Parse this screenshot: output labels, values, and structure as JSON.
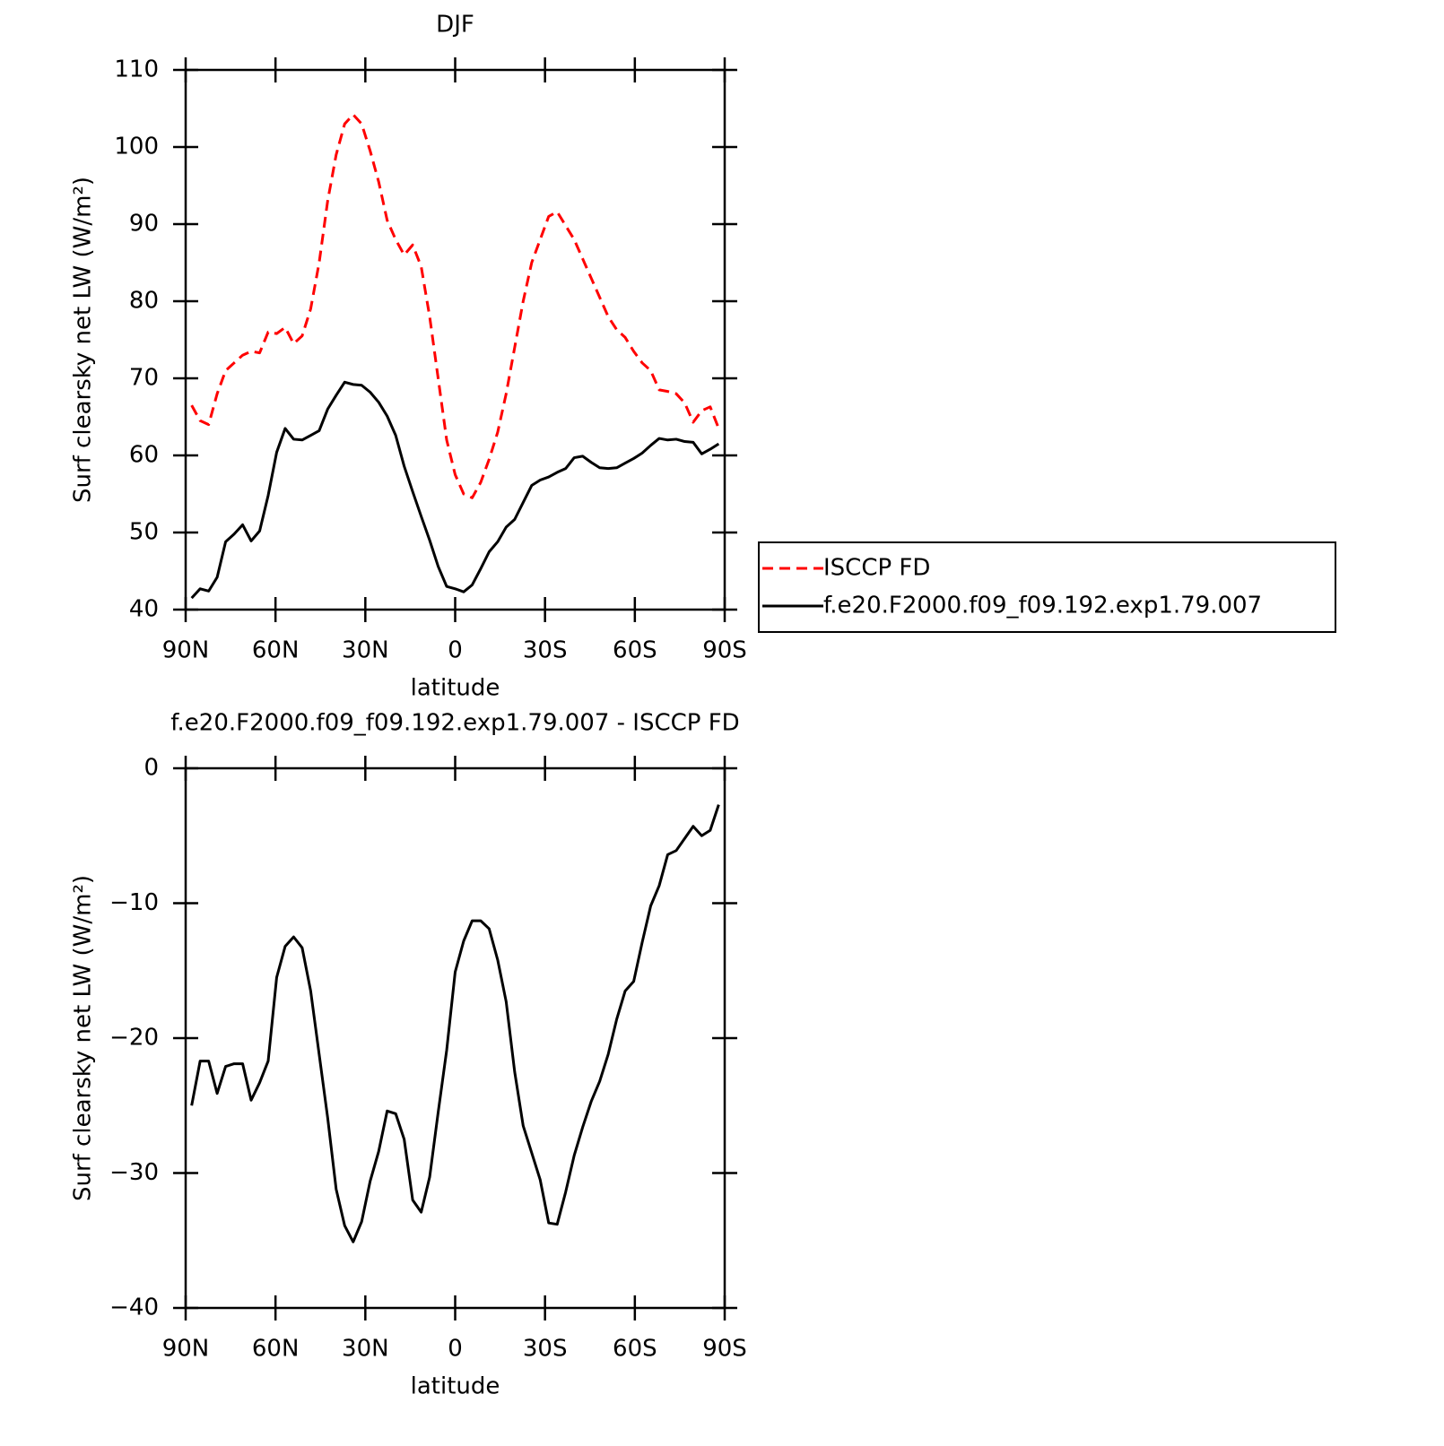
{
  "chart_data": [
    {
      "type": "line",
      "title": "DJF",
      "x_label": "latitude",
      "y_label": "Surf clearsky net LW (W/m²)",
      "x": [
        88,
        85.16,
        82.32,
        79.48,
        76.65,
        73.81,
        70.97,
        68.13,
        65.29,
        62.45,
        59.61,
        56.77,
        53.94,
        51.1,
        48.26,
        45.42,
        42.58,
        39.74,
        36.9,
        34.06,
        31.23,
        28.39,
        25.55,
        22.71,
        19.87,
        17.03,
        14.19,
        11.35,
        8.52,
        5.68,
        2.84,
        0,
        -2.84,
        -5.68,
        -8.52,
        -11.35,
        -14.19,
        -17.03,
        -19.87,
        -22.71,
        -25.55,
        -28.39,
        -31.23,
        -34.06,
        -36.9,
        -39.74,
        -42.58,
        -45.42,
        -48.26,
        -51.1,
        -53.94,
        -56.77,
        -59.61,
        -62.45,
        -65.29,
        -68.13,
        -70.97,
        -73.81,
        -76.65,
        -79.48,
        -82.32,
        -85.16,
        -88
      ],
      "xlim": [
        90,
        -90
      ],
      "xticks": [
        {
          "value": 90,
          "label": "90N"
        },
        {
          "value": 60,
          "label": "60N"
        },
        {
          "value": 30,
          "label": "30N"
        },
        0,
        {
          "value": -30,
          "label": "30S"
        },
        {
          "value": -60,
          "label": "60S"
        },
        {
          "value": -90,
          "label": "90S"
        }
      ],
      "ylim": [
        40,
        110
      ],
      "yticks": [
        40,
        50,
        60,
        70,
        80,
        90,
        100,
        110
      ],
      "legend": "right",
      "series": [
        {
          "name": "ISCCP FD",
          "color": "#ff0000",
          "dashed": true,
          "values": [
            66.5,
            64.5,
            64,
            68,
            71,
            72,
            73,
            73.5,
            73.3,
            76,
            75.8,
            76.6,
            74.5,
            75.5,
            79,
            85,
            93,
            99,
            103,
            104.2,
            103,
            99.5,
            95.5,
            90.5,
            88,
            86,
            87.3,
            84.5,
            78,
            70,
            62,
            57.5,
            55,
            54.5,
            56.5,
            59.5,
            63,
            68,
            74,
            80,
            85,
            88,
            91,
            91.6,
            89.8,
            88,
            85.5,
            83,
            80.5,
            78,
            76.3,
            75.3,
            73.5,
            72,
            71,
            68.5,
            68.3,
            68,
            66.8,
            64.3,
            65.8,
            66.3,
            63.5
          ]
        },
        {
          "name": "f.e20.F2000.f09_f09.192.exp1.79.007",
          "color": "#000000",
          "dashed": false,
          "values": [
            41.5,
            42.7,
            42.4,
            44.2,
            48.8,
            49.8,
            51,
            48.9,
            50.2,
            54.8,
            60.4,
            63.5,
            62.1,
            62,
            62.6,
            63.2,
            66,
            67.8,
            69.5,
            69.2,
            69.1,
            68.2,
            66.9,
            65.1,
            62.6,
            58.6,
            55.3,
            52.1,
            49,
            45.6,
            43,
            42.7,
            42.3,
            43.2,
            45.3,
            47.5,
            48.8,
            50.7,
            51.7,
            53.9,
            56.1,
            56.8,
            57.2,
            57.8,
            58.3,
            59.7,
            59.9,
            59.1,
            58.4,
            58.3,
            58.4,
            59,
            59.6,
            60.3,
            61.3,
            62.2,
            62,
            62.1,
            61.8,
            61.7,
            60.2,
            60.8,
            61.5
          ]
        }
      ]
    },
    {
      "type": "line",
      "title": "f.e20.F2000.f09_f09.192.exp1.79.007 - ISCCP FD",
      "x_label": "latitude",
      "y_label": "Surf clearsky net LW (W/m²)",
      "x": [
        88,
        85.16,
        82.32,
        79.48,
        76.65,
        73.81,
        70.97,
        68.13,
        65.29,
        62.45,
        59.61,
        56.77,
        53.94,
        51.1,
        48.26,
        45.42,
        42.58,
        39.74,
        36.9,
        34.06,
        31.23,
        28.39,
        25.55,
        22.71,
        19.87,
        17.03,
        14.19,
        11.35,
        8.52,
        5.68,
        2.84,
        0,
        -2.84,
        -5.68,
        -8.52,
        -11.35,
        -14.19,
        -17.03,
        -19.87,
        -22.71,
        -25.55,
        -28.39,
        -31.23,
        -34.06,
        -36.9,
        -39.74,
        -42.58,
        -45.42,
        -48.26,
        -51.1,
        -53.94,
        -56.77,
        -59.61,
        -62.45,
        -65.29,
        -68.13,
        -70.97,
        -73.81,
        -76.65,
        -79.48,
        -82.32,
        -85.16,
        -88
      ],
      "xlim": [
        90,
        -90
      ],
      "xticks": [
        {
          "value": 90,
          "label": "90N"
        },
        {
          "value": 60,
          "label": "60N"
        },
        {
          "value": 30,
          "label": "30N"
        },
        0,
        {
          "value": -30,
          "label": "30S"
        },
        {
          "value": -60,
          "label": "60S"
        },
        {
          "value": -90,
          "label": "90S"
        }
      ],
      "ylim": [
        -40,
        0
      ],
      "yticks": [
        {
          "value": -40,
          "label": "−40"
        },
        {
          "value": -30,
          "label": "−30"
        },
        {
          "value": -20,
          "label": "−20"
        },
        {
          "value": -10,
          "label": "−10"
        },
        0
      ],
      "series": [
        {
          "color": "#000000",
          "dashed": false,
          "values": [
            -25,
            -21.7,
            -21.7,
            -24.1,
            -22.1,
            -21.9,
            -21.9,
            -24.6,
            -23.3,
            -21.7,
            -15.5,
            -13.2,
            -12.5,
            -13.3,
            -16.5,
            -21.2,
            -25.9,
            -31.2,
            -33.9,
            -35.1,
            -33.6,
            -30.6,
            -28.4,
            -25.4,
            -25.6,
            -27.5,
            -32,
            -32.9,
            -30.3,
            -25.5,
            -20.9,
            -15.1,
            -12.8,
            -11.3,
            -11.3,
            -11.9,
            -14.2,
            -17.3,
            -22.5,
            -26.5,
            -28.5,
            -30.5,
            -33.7,
            -33.8,
            -31.4,
            -28.7,
            -26.6,
            -24.7,
            -23.2,
            -21.2,
            -18.6,
            -16.5,
            -15.8,
            -12.9,
            -10.2,
            -8.7,
            -6.4,
            -6.1,
            -5.2,
            -4.3,
            -5,
            -4.6,
            -2.7
          ]
        }
      ]
    }
  ]
}
